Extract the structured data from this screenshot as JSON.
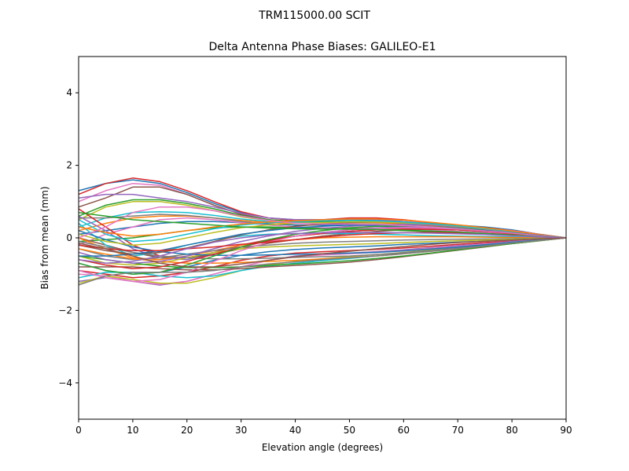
{
  "chart_data": {
    "type": "line",
    "suptitle": "TRM115000.00    SCIT",
    "title": "Delta Antenna Phase Biases: GALILEO-E1",
    "xlabel": "Elevation angle (degrees)",
    "ylabel": "Bias from mean (mm)",
    "xlim": [
      0,
      90
    ],
    "ylim": [
      -5,
      5
    ],
    "xticks": [
      0,
      10,
      20,
      30,
      40,
      50,
      60,
      70,
      80,
      90
    ],
    "xtick_labels": [
      "0",
      "10",
      "20",
      "30",
      "40",
      "50",
      "60",
      "70",
      "80",
      "90"
    ],
    "yticks": [
      -4,
      -2,
      0,
      2,
      4
    ],
    "ytick_labels": [
      "−4",
      "−2",
      "0",
      "2",
      "4"
    ],
    "grid": false,
    "x": [
      0,
      5,
      10,
      15,
      20,
      25,
      30,
      35,
      40,
      45,
      50,
      55,
      60,
      65,
      70,
      75,
      80,
      85,
      90
    ],
    "series": [
      {
        "color": "#1f77b4",
        "values": [
          1.3,
          1.5,
          1.6,
          1.5,
          1.25,
          0.95,
          0.7,
          0.55,
          0.5,
          0.5,
          0.5,
          0.5,
          0.45,
          0.4,
          0.35,
          0.3,
          0.22,
          0.1,
          0.0
        ]
      },
      {
        "color": "#d62728",
        "values": [
          1.2,
          1.5,
          1.65,
          1.55,
          1.3,
          1.0,
          0.72,
          0.55,
          0.48,
          0.5,
          0.55,
          0.55,
          0.5,
          0.42,
          0.35,
          0.28,
          0.2,
          0.1,
          0.0
        ]
      },
      {
        "color": "#e377c2",
        "values": [
          1.0,
          1.3,
          1.5,
          1.45,
          1.2,
          0.9,
          0.65,
          0.5,
          0.45,
          0.45,
          0.5,
          0.5,
          0.45,
          0.4,
          0.33,
          0.27,
          0.2,
          0.1,
          0.0
        ]
      },
      {
        "color": "#8c564b",
        "values": [
          0.85,
          1.1,
          1.4,
          1.4,
          1.2,
          0.9,
          0.65,
          0.5,
          0.45,
          0.45,
          0.48,
          0.48,
          0.44,
          0.38,
          0.32,
          0.25,
          0.18,
          0.09,
          0.0
        ]
      },
      {
        "color": "#9467bd",
        "values": [
          1.1,
          1.2,
          1.2,
          1.1,
          1.0,
          0.85,
          0.68,
          0.55,
          0.5,
          0.5,
          0.52,
          0.5,
          0.45,
          0.38,
          0.3,
          0.24,
          0.17,
          0.08,
          0.0
        ]
      },
      {
        "color": "#2ca02c",
        "values": [
          0.6,
          0.9,
          1.05,
          1.05,
          0.95,
          0.8,
          0.62,
          0.5,
          0.45,
          0.45,
          0.48,
          0.46,
          0.42,
          0.36,
          0.3,
          0.23,
          0.16,
          0.08,
          0.0
        ]
      },
      {
        "color": "#bcbd22",
        "values": [
          0.5,
          0.85,
          1.0,
          1.0,
          0.9,
          0.75,
          0.58,
          0.48,
          0.42,
          0.42,
          0.45,
          0.44,
          0.4,
          0.34,
          0.28,
          0.22,
          0.15,
          0.07,
          0.0
        ]
      },
      {
        "color": "#17becf",
        "values": [
          0.3,
          0.55,
          0.7,
          0.72,
          0.7,
          0.62,
          0.52,
          0.45,
          0.42,
          0.42,
          0.44,
          0.44,
          0.4,
          0.35,
          0.28,
          0.22,
          0.15,
          0.07,
          0.0
        ]
      },
      {
        "color": "#ff7f0e",
        "values": [
          0.2,
          0.4,
          0.55,
          0.6,
          0.6,
          0.55,
          0.48,
          0.42,
          0.4,
          0.4,
          0.42,
          0.42,
          0.38,
          0.33,
          0.27,
          0.21,
          0.14,
          0.07,
          0.0
        ]
      },
      {
        "color": "#7f7f7f",
        "values": [
          0.55,
          0.55,
          0.6,
          0.65,
          0.62,
          0.55,
          0.45,
          0.38,
          0.35,
          0.35,
          0.38,
          0.38,
          0.35,
          0.3,
          0.25,
          0.2,
          0.14,
          0.07,
          0.0
        ]
      },
      {
        "color": "#1f77b4",
        "values": [
          0.1,
          0.2,
          0.3,
          0.4,
          0.45,
          0.45,
          0.42,
          0.38,
          0.35,
          0.35,
          0.35,
          0.33,
          0.3,
          0.26,
          0.22,
          0.17,
          0.12,
          0.06,
          0.0
        ]
      },
      {
        "color": "#e377c2",
        "values": [
          -0.2,
          0.1,
          0.3,
          0.5,
          0.55,
          0.5,
          0.42,
          0.35,
          0.3,
          0.28,
          0.28,
          0.27,
          0.25,
          0.22,
          0.18,
          0.14,
          0.1,
          0.05,
          0.0
        ]
      },
      {
        "color": "#2ca02c",
        "values": [
          -0.1,
          -0.05,
          0.0,
          0.1,
          0.2,
          0.28,
          0.3,
          0.3,
          0.28,
          0.26,
          0.25,
          0.23,
          0.2,
          0.17,
          0.14,
          0.11,
          0.08,
          0.04,
          0.0
        ]
      },
      {
        "color": "#d62728",
        "values": [
          0.8,
          0.3,
          -0.2,
          -0.5,
          -0.55,
          -0.4,
          -0.2,
          -0.05,
          0.05,
          0.12,
          0.18,
          0.22,
          0.24,
          0.24,
          0.22,
          0.18,
          0.12,
          0.06,
          0.0
        ]
      },
      {
        "color": "#9467bd",
        "values": [
          0.6,
          0.2,
          -0.3,
          -0.55,
          -0.6,
          -0.45,
          -0.25,
          -0.08,
          0.05,
          0.15,
          0.22,
          0.28,
          0.3,
          0.3,
          0.27,
          0.22,
          0.15,
          0.07,
          0.0
        ]
      },
      {
        "color": "#8c564b",
        "values": [
          0.0,
          -0.2,
          -0.4,
          -0.55,
          -0.55,
          -0.45,
          -0.3,
          -0.15,
          -0.05,
          0.05,
          0.12,
          0.18,
          0.22,
          0.24,
          0.23,
          0.2,
          0.14,
          0.07,
          0.0
        ]
      },
      {
        "color": "#17becf",
        "values": [
          0.4,
          -0.2,
          -0.5,
          -0.4,
          -0.2,
          -0.05,
          0.05,
          0.1,
          0.12,
          0.12,
          0.12,
          0.1,
          0.08,
          0.06,
          0.05,
          0.04,
          0.03,
          0.01,
          0.0
        ]
      },
      {
        "color": "#ff7f0e",
        "values": [
          0.0,
          -0.3,
          -0.55,
          -0.6,
          -0.5,
          -0.35,
          -0.2,
          -0.1,
          -0.05,
          0.0,
          0.02,
          0.03,
          0.03,
          0.03,
          0.03,
          0.02,
          0.01,
          0.0,
          0.0
        ]
      },
      {
        "color": "#7f7f7f",
        "values": [
          -0.3,
          -0.5,
          -0.6,
          -0.55,
          -0.45,
          -0.35,
          -0.25,
          -0.2,
          -0.15,
          -0.12,
          -0.1,
          -0.08,
          -0.06,
          -0.05,
          -0.04,
          -0.03,
          -0.02,
          -0.01,
          0.0
        ]
      },
      {
        "color": "#bcbd22",
        "values": [
          -0.5,
          -0.7,
          -0.75,
          -0.7,
          -0.55,
          -0.4,
          -0.3,
          -0.25,
          -0.22,
          -0.2,
          -0.18,
          -0.16,
          -0.13,
          -0.1,
          -0.08,
          -0.06,
          -0.04,
          -0.02,
          0.0
        ]
      },
      {
        "color": "#1f77b4",
        "values": [
          -0.7,
          -0.9,
          -1.0,
          -0.95,
          -0.8,
          -0.62,
          -0.48,
          -0.38,
          -0.32,
          -0.28,
          -0.25,
          -0.22,
          -0.18,
          -0.15,
          -0.12,
          -0.09,
          -0.06,
          -0.03,
          0.0
        ]
      },
      {
        "color": "#d62728",
        "values": [
          -0.9,
          -1.0,
          -1.1,
          -1.05,
          -0.95,
          -0.8,
          -0.62,
          -0.5,
          -0.42,
          -0.38,
          -0.35,
          -0.32,
          -0.28,
          -0.23,
          -0.18,
          -0.13,
          -0.09,
          -0.04,
          0.0
        ]
      },
      {
        "color": "#9467bd",
        "values": [
          -1.2,
          -1.1,
          -1.2,
          -1.3,
          -1.2,
          -1.0,
          -0.8,
          -0.62,
          -0.5,
          -0.45,
          -0.42,
          -0.38,
          -0.33,
          -0.27,
          -0.21,
          -0.16,
          -0.1,
          -0.05,
          0.0
        ]
      },
      {
        "color": "#e377c2",
        "values": [
          -1.0,
          -1.05,
          -1.2,
          -1.28,
          -1.2,
          -1.0,
          -0.8,
          -0.62,
          -0.52,
          -0.47,
          -0.44,
          -0.4,
          -0.35,
          -0.29,
          -0.23,
          -0.17,
          -0.11,
          -0.05,
          0.0
        ]
      },
      {
        "color": "#bcbd22",
        "values": [
          -1.25,
          -1.05,
          -1.15,
          -1.25,
          -1.25,
          -1.1,
          -0.9,
          -0.75,
          -0.65,
          -0.58,
          -0.52,
          -0.46,
          -0.4,
          -0.33,
          -0.26,
          -0.19,
          -0.13,
          -0.06,
          0.0
        ]
      },
      {
        "color": "#17becf",
        "values": [
          -1.1,
          -0.95,
          -0.95,
          -1.05,
          -1.1,
          -1.05,
          -0.9,
          -0.78,
          -0.7,
          -0.63,
          -0.57,
          -0.5,
          -0.43,
          -0.36,
          -0.28,
          -0.21,
          -0.14,
          -0.07,
          0.0
        ]
      },
      {
        "color": "#8c564b",
        "values": [
          -0.8,
          -0.8,
          -0.8,
          -0.85,
          -0.88,
          -0.88,
          -0.85,
          -0.8,
          -0.76,
          -0.72,
          -0.67,
          -0.6,
          -0.52,
          -0.43,
          -0.34,
          -0.25,
          -0.16,
          -0.08,
          0.0
        ]
      },
      {
        "color": "#2ca02c",
        "values": [
          -0.5,
          -0.6,
          -0.7,
          -0.78,
          -0.82,
          -0.82,
          -0.8,
          -0.76,
          -0.72,
          -0.68,
          -0.63,
          -0.57,
          -0.5,
          -0.42,
          -0.33,
          -0.24,
          -0.16,
          -0.08,
          0.0
        ]
      },
      {
        "color": "#ff7f0e",
        "values": [
          -0.3,
          -0.45,
          -0.58,
          -0.65,
          -0.7,
          -0.7,
          -0.68,
          -0.65,
          -0.62,
          -0.58,
          -0.55,
          -0.5,
          -0.44,
          -0.37,
          -0.3,
          -0.22,
          -0.14,
          -0.07,
          0.0
        ]
      },
      {
        "color": "#7f7f7f",
        "values": [
          -0.1,
          -0.25,
          -0.4,
          -0.5,
          -0.55,
          -0.58,
          -0.58,
          -0.56,
          -0.54,
          -0.52,
          -0.5,
          -0.46,
          -0.41,
          -0.35,
          -0.28,
          -0.21,
          -0.14,
          -0.07,
          0.0
        ]
      },
      {
        "color": "#1f77b4",
        "values": [
          0.2,
          -0.05,
          -0.25,
          -0.38,
          -0.45,
          -0.48,
          -0.48,
          -0.47,
          -0.45,
          -0.44,
          -0.42,
          -0.4,
          -0.36,
          -0.31,
          -0.25,
          -0.19,
          -0.12,
          -0.06,
          0.0
        ]
      },
      {
        "color": "#d62728",
        "values": [
          -0.6,
          -0.75,
          -0.85,
          -0.8,
          -0.65,
          -0.45,
          -0.25,
          -0.08,
          0.05,
          0.12,
          0.18,
          0.22,
          0.24,
          0.24,
          0.22,
          0.18,
          0.13,
          0.06,
          0.0
        ]
      },
      {
        "color": "#e377c2",
        "values": [
          -0.9,
          -1.1,
          -1.2,
          -1.15,
          -0.95,
          -0.65,
          -0.35,
          -0.12,
          0.05,
          0.15,
          0.22,
          0.26,
          0.28,
          0.27,
          0.24,
          0.2,
          0.14,
          0.07,
          0.0
        ]
      },
      {
        "color": "#2ca02c",
        "values": [
          -0.7,
          -0.9,
          -1.0,
          -0.95,
          -0.75,
          -0.5,
          -0.25,
          -0.05,
          0.1,
          0.2,
          0.28,
          0.32,
          0.33,
          0.31,
          0.27,
          0.22,
          0.15,
          0.07,
          0.0
        ]
      },
      {
        "color": "#9467bd",
        "values": [
          -0.4,
          -0.6,
          -0.7,
          -0.65,
          -0.5,
          -0.3,
          -0.1,
          0.05,
          0.18,
          0.26,
          0.32,
          0.36,
          0.37,
          0.35,
          0.3,
          0.24,
          0.16,
          0.08,
          0.0
        ]
      },
      {
        "color": "#8c564b",
        "values": [
          -0.2,
          -0.35,
          -0.45,
          -0.4,
          -0.28,
          -0.1,
          0.08,
          0.22,
          0.32,
          0.38,
          0.42,
          0.44,
          0.43,
          0.4,
          0.34,
          0.27,
          0.18,
          0.09,
          0.0
        ]
      },
      {
        "color": "#bcbd22",
        "values": [
          0.1,
          -0.1,
          -0.2,
          -0.15,
          0.0,
          0.15,
          0.28,
          0.36,
          0.4,
          0.42,
          0.44,
          0.44,
          0.42,
          0.38,
          0.32,
          0.25,
          0.17,
          0.08,
          0.0
        ]
      },
      {
        "color": "#17becf",
        "values": [
          0.5,
          0.1,
          -0.1,
          -0.05,
          0.1,
          0.25,
          0.35,
          0.42,
          0.45,
          0.47,
          0.48,
          0.47,
          0.44,
          0.39,
          0.33,
          0.26,
          0.18,
          0.09,
          0.0
        ]
      },
      {
        "color": "#ff7f0e",
        "values": [
          0.3,
          0.15,
          0.05,
          0.1,
          0.2,
          0.3,
          0.38,
          0.44,
          0.47,
          0.5,
          0.52,
          0.52,
          0.49,
          0.43,
          0.36,
          0.28,
          0.19,
          0.09,
          0.0
        ]
      },
      {
        "color": "#7f7f7f",
        "values": [
          -1.3,
          -1.05,
          -0.95,
          -0.95,
          -0.95,
          -0.9,
          -0.8,
          -0.72,
          -0.66,
          -0.6,
          -0.55,
          -0.5,
          -0.44,
          -0.37,
          -0.3,
          -0.22,
          -0.14,
          -0.07,
          0.0
        ]
      },
      {
        "color": "#1f77b4",
        "values": [
          -0.5,
          -0.5,
          -0.45,
          -0.35,
          -0.2,
          -0.05,
          0.1,
          0.2,
          0.28,
          0.32,
          0.35,
          0.36,
          0.34,
          0.3,
          0.25,
          0.2,
          0.14,
          0.07,
          0.0
        ]
      },
      {
        "color": "#d62728",
        "values": [
          -0.2,
          -0.3,
          -0.35,
          -0.35,
          -0.3,
          -0.25,
          -0.18,
          -0.12,
          -0.05,
          0.02,
          0.08,
          0.12,
          0.14,
          0.15,
          0.14,
          0.12,
          0.09,
          0.04,
          0.0
        ]
      },
      {
        "color": "#e377c2",
        "values": [
          0.0,
          0.3,
          0.7,
          0.85,
          0.85,
          0.75,
          0.6,
          0.48,
          0.4,
          0.38,
          0.38,
          0.37,
          0.34,
          0.3,
          0.25,
          0.19,
          0.13,
          0.06,
          0.0
        ]
      },
      {
        "color": "#2ca02c",
        "values": [
          0.7,
          0.6,
          0.5,
          0.45,
          0.4,
          0.35,
          0.3,
          0.27,
          0.25,
          0.24,
          0.24,
          0.23,
          0.21,
          0.19,
          0.16,
          0.12,
          0.08,
          0.04,
          0.0
        ]
      },
      {
        "color": "#9467bd",
        "values": [
          -0.6,
          -0.7,
          -0.65,
          -0.5,
          -0.3,
          -0.12,
          0.0,
          0.08,
          0.12,
          0.14,
          0.15,
          0.15,
          0.14,
          0.13,
          0.11,
          0.09,
          0.06,
          0.03,
          0.0
        ]
      },
      {
        "color": "#8c564b",
        "values": [
          -0.15,
          -0.3,
          -0.5,
          -0.7,
          -0.8,
          -0.8,
          -0.72,
          -0.62,
          -0.52,
          -0.44,
          -0.37,
          -0.3,
          -0.24,
          -0.18,
          -0.13,
          -0.09,
          -0.06,
          -0.03,
          0.0
        ]
      }
    ]
  }
}
